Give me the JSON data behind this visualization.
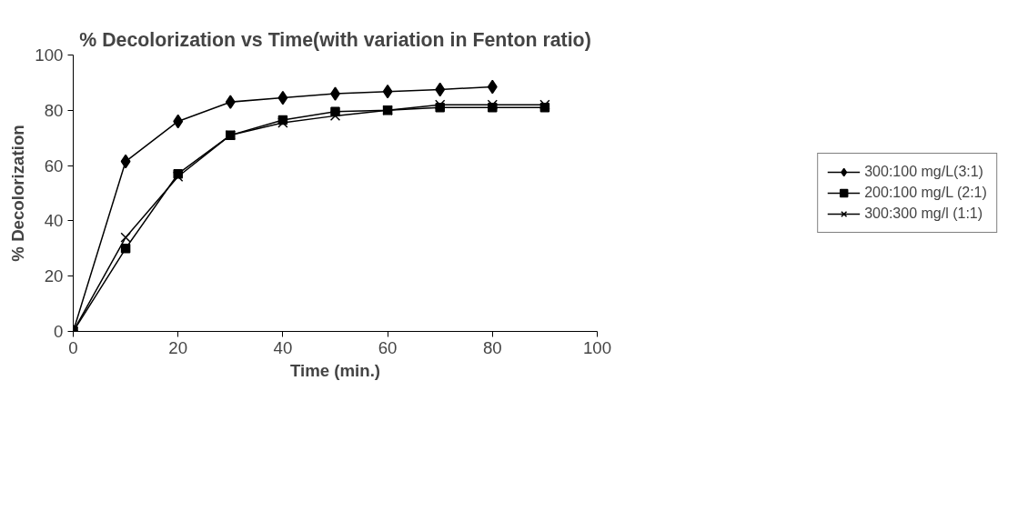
{
  "chart_data": {
    "type": "line",
    "title": "% Decolorization vs Time(with variation in Fenton ratio)",
    "xlabel": "Time (min.)",
    "ylabel": "% Decolorization",
    "x": [
      0,
      10,
      20,
      30,
      40,
      50,
      60,
      70,
      80,
      90
    ],
    "xlim": [
      0,
      100
    ],
    "xticks": [
      0,
      20,
      40,
      60,
      80,
      100
    ],
    "ylim": [
      0,
      100
    ],
    "yticks": [
      0,
      20,
      40,
      60,
      80,
      100
    ],
    "grid": false,
    "legend": "right",
    "series": [
      {
        "name": "300:100 mg/L(3:1)",
        "color": "#000000",
        "marker": "diamond",
        "x": [
          0,
          10,
          20,
          30,
          40,
          50,
          60,
          70,
          80
        ],
        "values": [
          0,
          61.5,
          76,
          83,
          84.5,
          86,
          86.8,
          87.5,
          88.5
        ]
      },
      {
        "name": "200:100 mg/L (2:1)",
        "color": "#000000",
        "marker": "square",
        "values": [
          0,
          30,
          57,
          71,
          76.5,
          79.5,
          80,
          81,
          81,
          81
        ]
      },
      {
        "name": "300:300 mg/l (1:1)",
        "color": "#000000",
        "marker": "cross",
        "values": [
          0,
          34,
          56,
          71,
          75.5,
          78,
          80,
          82,
          82,
          82
        ]
      }
    ]
  }
}
